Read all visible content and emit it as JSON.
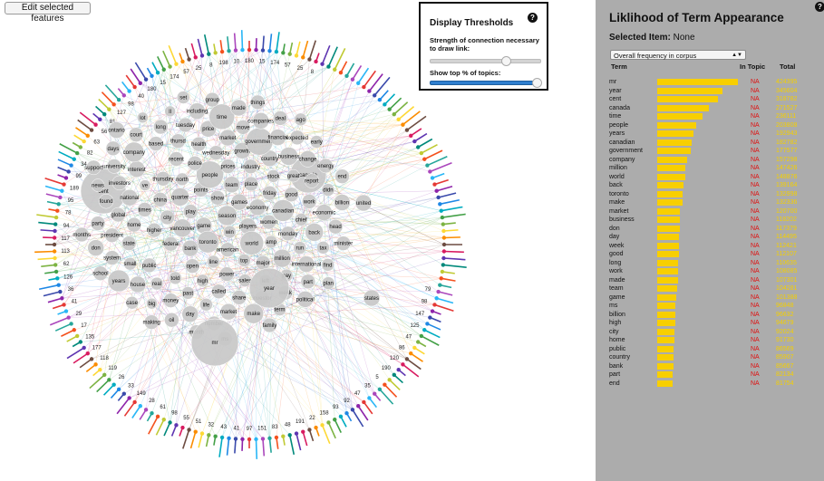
{
  "toolbar": {
    "edit_label": "Edit selected features"
  },
  "thresholds": {
    "title": "Display Thresholds",
    "help": "?",
    "strength_label": "Strength of connection necessary to draw link:",
    "strength_value_fraction": 0.68,
    "topics_label": "Show top % of topics:",
    "topics_value_fraction": 1.0
  },
  "panel": {
    "title": "Liklihood of Term Appearance",
    "help": "?",
    "selected_label": "Selected Item:",
    "selected_value": "None",
    "metric_select": "Overall frequency in corpus",
    "col_term": "Term",
    "col_in_topic": "In Topic",
    "col_total": "Total",
    "colors": {
      "bar": "#f8cf00",
      "na": "#e01010",
      "total": "#f4cf00",
      "background": "#acacac"
    },
    "rows": [
      {
        "term": "mr",
        "in_topic": "NA",
        "total": "424395"
      },
      {
        "term": "year",
        "in_topic": "NA",
        "total": "345604"
      },
      {
        "term": "cent",
        "in_topic": "NA",
        "total": "318782"
      },
      {
        "term": "canada",
        "in_topic": "NA",
        "total": "271527"
      },
      {
        "term": "time",
        "in_topic": "NA",
        "total": "236111"
      },
      {
        "term": "people",
        "in_topic": "NA",
        "total": "203808"
      },
      {
        "term": "years",
        "in_topic": "NA",
        "total": "192943"
      },
      {
        "term": "canadian",
        "in_topic": "NA",
        "total": "182782"
      },
      {
        "term": "government",
        "in_topic": "NA",
        "total": "177577"
      },
      {
        "term": "company",
        "in_topic": "NA",
        "total": "157298"
      },
      {
        "term": "million",
        "in_topic": "NA",
        "total": "147426"
      },
      {
        "term": "world",
        "in_topic": "NA",
        "total": "148876"
      },
      {
        "term": "back",
        "in_topic": "NA",
        "total": "139164"
      },
      {
        "term": "toronto",
        "in_topic": "NA",
        "total": "132998"
      },
      {
        "term": "make",
        "in_topic": "NA",
        "total": "132336"
      },
      {
        "term": "market",
        "in_topic": "NA",
        "total": "120700"
      },
      {
        "term": "business",
        "in_topic": "NA",
        "total": "118202"
      },
      {
        "term": "don",
        "in_topic": "NA",
        "total": "117379"
      },
      {
        "term": "day",
        "in_topic": "NA",
        "total": "114495"
      },
      {
        "term": "week",
        "in_topic": "NA",
        "total": "112421"
      },
      {
        "term": "good",
        "in_topic": "NA",
        "total": "112107"
      },
      {
        "term": "long",
        "in_topic": "NA",
        "total": "110635"
      },
      {
        "term": "work",
        "in_topic": "NA",
        "total": "108085"
      },
      {
        "term": "made",
        "in_topic": "NA",
        "total": "107301"
      },
      {
        "term": "team",
        "in_topic": "NA",
        "total": "104281"
      },
      {
        "term": "game",
        "in_topic": "NA",
        "total": "101388"
      },
      {
        "term": "ms",
        "in_topic": "NA",
        "total": "96848"
      },
      {
        "term": "billion",
        "in_topic": "NA",
        "total": "96632"
      },
      {
        "term": "high",
        "in_topic": "NA",
        "total": "94679"
      },
      {
        "term": "city",
        "in_topic": "NA",
        "total": "92024"
      },
      {
        "term": "home",
        "in_topic": "NA",
        "total": "91730"
      },
      {
        "term": "public",
        "in_topic": "NA",
        "total": "86569"
      },
      {
        "term": "country",
        "in_topic": "NA",
        "total": "85907"
      },
      {
        "term": "bank",
        "in_topic": "NA",
        "total": "85667"
      },
      {
        "term": "part",
        "in_topic": "NA",
        "total": "82134"
      },
      {
        "term": "end",
        "in_topic": "NA",
        "total": "81754"
      }
    ]
  },
  "network": {
    "terms": [
      {
        "t": "season",
        "w": "22"
      },
      {
        "t": "game",
        "w": "18"
      },
      {
        "t": "show",
        "w": "16"
      },
      {
        "t": "win",
        "w": "14"
      },
      {
        "t": "play",
        "w": "16"
      },
      {
        "t": "games",
        "w": "18"
      },
      {
        "t": "toronto",
        "w": "24"
      },
      {
        "t": "points",
        "w": "16"
      },
      {
        "t": "players",
        "w": "18"
      },
      {
        "t": "vancouver",
        "w": "20"
      },
      {
        "t": "team",
        "w": "18"
      },
      {
        "t": "american",
        "w": "16"
      },
      {
        "t": "quarter",
        "w": "20"
      },
      {
        "t": "economy",
        "w": "18"
      },
      {
        "t": "bank",
        "w": "18"
      },
      {
        "t": "people",
        "w": "30"
      },
      {
        "t": "world",
        "w": "26"
      },
      {
        "t": "city",
        "w": "16"
      },
      {
        "t": "place",
        "w": "16"
      },
      {
        "t": "line",
        "w": "14"
      },
      {
        "t": "north",
        "w": "14"
      },
      {
        "t": "women",
        "w": "16"
      },
      {
        "t": "federal",
        "w": "16"
      },
      {
        "t": "prices",
        "w": "16"
      },
      {
        "t": "top",
        "w": "14"
      },
      {
        "t": "china",
        "w": "16"
      },
      {
        "t": "friday",
        "w": "16"
      },
      {
        "t": "open",
        "w": "16"
      },
      {
        "t": "police",
        "w": "16"
      },
      {
        "t": "amp",
        "w": "14"
      },
      {
        "t": "higher",
        "w": "16"
      },
      {
        "t": "industry",
        "w": "16"
      },
      {
        "t": "power",
        "w": "16"
      },
      {
        "t": "thursday",
        "w": "16"
      },
      {
        "t": "canadian",
        "w": "24"
      },
      {
        "t": "canada",
        "w": "40"
      },
      {
        "t": "wednesday",
        "w": "16"
      },
      {
        "t": "major",
        "w": "16"
      },
      {
        "t": "times",
        "w": "16"
      },
      {
        "t": "stock",
        "w": "14"
      },
      {
        "t": "high",
        "w": "14"
      },
      {
        "t": "recent",
        "w": "16"
      },
      {
        "t": "monday",
        "w": "16"
      },
      {
        "t": "cent",
        "w": "50"
      },
      {
        "t": "growth",
        "w": "18"
      },
      {
        "t": "sales",
        "w": "14"
      },
      {
        "t": "ve",
        "w": "12"
      },
      {
        "t": "good",
        "w": "16"
      },
      {
        "t": "told",
        "w": "14"
      },
      {
        "t": "health",
        "w": "16"
      },
      {
        "t": "million",
        "w": "20"
      },
      {
        "t": "home",
        "w": "16"
      },
      {
        "t": "country",
        "w": "18"
      },
      {
        "t": "called",
        "w": "16"
      },
      {
        "t": "united",
        "w": "18"
      },
      {
        "t": "chief",
        "w": "14"
      },
      {
        "t": "public",
        "w": "16"
      },
      {
        "t": "market",
        "w": "18"
      },
      {
        "t": "left",
        "w": "14"
      },
      {
        "t": "national",
        "w": "18"
      },
      {
        "t": "great",
        "w": "14"
      },
      {
        "t": "past",
        "w": "14"
      },
      {
        "t": "thursd",
        "w": "16"
      },
      {
        "t": "run",
        "w": "14"
      },
      {
        "t": "state",
        "w": "16"
      },
      {
        "t": "government",
        "w": "30"
      },
      {
        "t": "share",
        "w": "16"
      },
      {
        "t": "interest",
        "w": "18"
      },
      {
        "t": "work",
        "w": "16"
      },
      {
        "t": "real",
        "w": "14"
      },
      {
        "t": "price",
        "w": "18"
      },
      {
        "t": "pay",
        "w": "14"
      },
      {
        "t": "global",
        "w": "16"
      },
      {
        "t": "business",
        "w": "20"
      },
      {
        "t": "life",
        "w": "14"
      },
      {
        "t": "based",
        "w": "16"
      },
      {
        "t": "back",
        "w": "20"
      },
      {
        "t": "small",
        "w": "14"
      },
      {
        "t": "move",
        "w": "16"
      },
      {
        "t": "investor",
        "w": "16"
      },
      {
        "t": "investors",
        "w": "16"
      },
      {
        "t": "report",
        "w": "16"
      },
      {
        "t": "money",
        "w": "16"
      },
      {
        "t": "tuesday",
        "w": "16"
      },
      {
        "t": "international",
        "w": "18"
      },
      {
        "t": "president",
        "w": "16"
      },
      {
        "t": "financial",
        "w": "18"
      },
      {
        "t": "market",
        "w": "18"
      },
      {
        "t": "company",
        "w": "22"
      },
      {
        "t": "economic",
        "w": "18"
      },
      {
        "t": "house",
        "w": "18"
      },
      {
        "t": "time",
        "w": "28"
      },
      {
        "t": "week",
        "w": "16"
      },
      {
        "t": "found",
        "w": "16"
      },
      {
        "t": "change",
        "w": "18"
      },
      {
        "t": "day",
        "w": "18"
      },
      {
        "t": "long",
        "w": "16"
      },
      {
        "t": "tax",
        "w": "14"
      },
      {
        "t": "system",
        "w": "16"
      },
      {
        "t": "companies",
        "w": "18"
      },
      {
        "t": "make",
        "w": "22"
      },
      {
        "t": "university",
        "w": "16"
      },
      {
        "t": "didn",
        "w": "14"
      },
      {
        "t": "big",
        "w": "12"
      },
      {
        "t": "including",
        "w": "18"
      },
      {
        "t": "part",
        "w": "16"
      },
      {
        "t": "party",
        "w": "16"
      },
      {
        "t": "expected",
        "w": "16"
      },
      {
        "t": "number",
        "w": "16"
      },
      {
        "t": "court",
        "w": "16"
      },
      {
        "t": "head",
        "w": "16"
      },
      {
        "t": "years",
        "w": "24"
      },
      {
        "t": "made",
        "w": "18"
      },
      {
        "t": "term",
        "w": "14"
      },
      {
        "t": "news",
        "w": "14"
      },
      {
        "t": "energy",
        "w": "16"
      },
      {
        "t": "oil",
        "w": "16"
      },
      {
        "t": "ll",
        "w": "12"
      },
      {
        "t": "find",
        "w": "14"
      },
      {
        "t": "don",
        "w": "18"
      },
      {
        "t": "deal",
        "w": "16"
      },
      {
        "t": "year",
        "w": "44"
      },
      {
        "t": "days",
        "w": "16"
      },
      {
        "t": "billion",
        "w": "18"
      },
      {
        "t": "case",
        "w": "14"
      },
      {
        "t": "group",
        "w": "16"
      },
      {
        "t": "political",
        "w": "18"
      },
      {
        "t": "states",
        "w": "18"
      },
      {
        "t": "early",
        "w": "14"
      },
      {
        "t": "month",
        "w": "16"
      },
      {
        "t": "lot",
        "w": "12"
      },
      {
        "t": "minister",
        "w": "16"
      },
      {
        "t": "school",
        "w": "16"
      },
      {
        "t": "things",
        "w": "16"
      },
      {
        "t": "family",
        "w": "16"
      },
      {
        "t": "support",
        "w": "16"
      },
      {
        "t": "end",
        "w": "16"
      },
      {
        "t": "making",
        "w": "16"
      },
      {
        "t": "set",
        "w": "14"
      },
      {
        "t": "plan",
        "w": "14"
      },
      {
        "t": "months",
        "w": "16"
      },
      {
        "t": "ago",
        "w": "14"
      },
      {
        "t": "ms",
        "w": "16"
      },
      {
        "t": "ontario",
        "w": "18"
      },
      {
        "t": "mr",
        "w": "52"
      }
    ],
    "topic_ids": [
      "180",
      "15",
      "174",
      "57",
      "25",
      "8",
      "198",
      "10",
      "180",
      "174",
      "73",
      "92",
      "110",
      "101",
      "156",
      "2",
      "85",
      "101",
      "153",
      "74",
      "166",
      "199",
      "45",
      "115",
      "153",
      "92",
      "79",
      "98",
      "147",
      "125",
      "47",
      "86",
      "120",
      "190",
      "5",
      "35",
      "47",
      "92",
      "93",
      "158",
      "22",
      "191",
      "48",
      "83",
      "151",
      "97",
      "41",
      "43",
      "32",
      "51",
      "55",
      "98",
      "61",
      "28",
      "149",
      "33",
      "26",
      "119",
      "118",
      "177",
      "135",
      "17",
      "29",
      "41",
      "36",
      "126",
      "62",
      "113",
      "117",
      "94",
      "78",
      "95",
      "189",
      "99",
      "34",
      "82",
      "63",
      "56",
      "81",
      "127",
      "98",
      "40"
    ]
  }
}
